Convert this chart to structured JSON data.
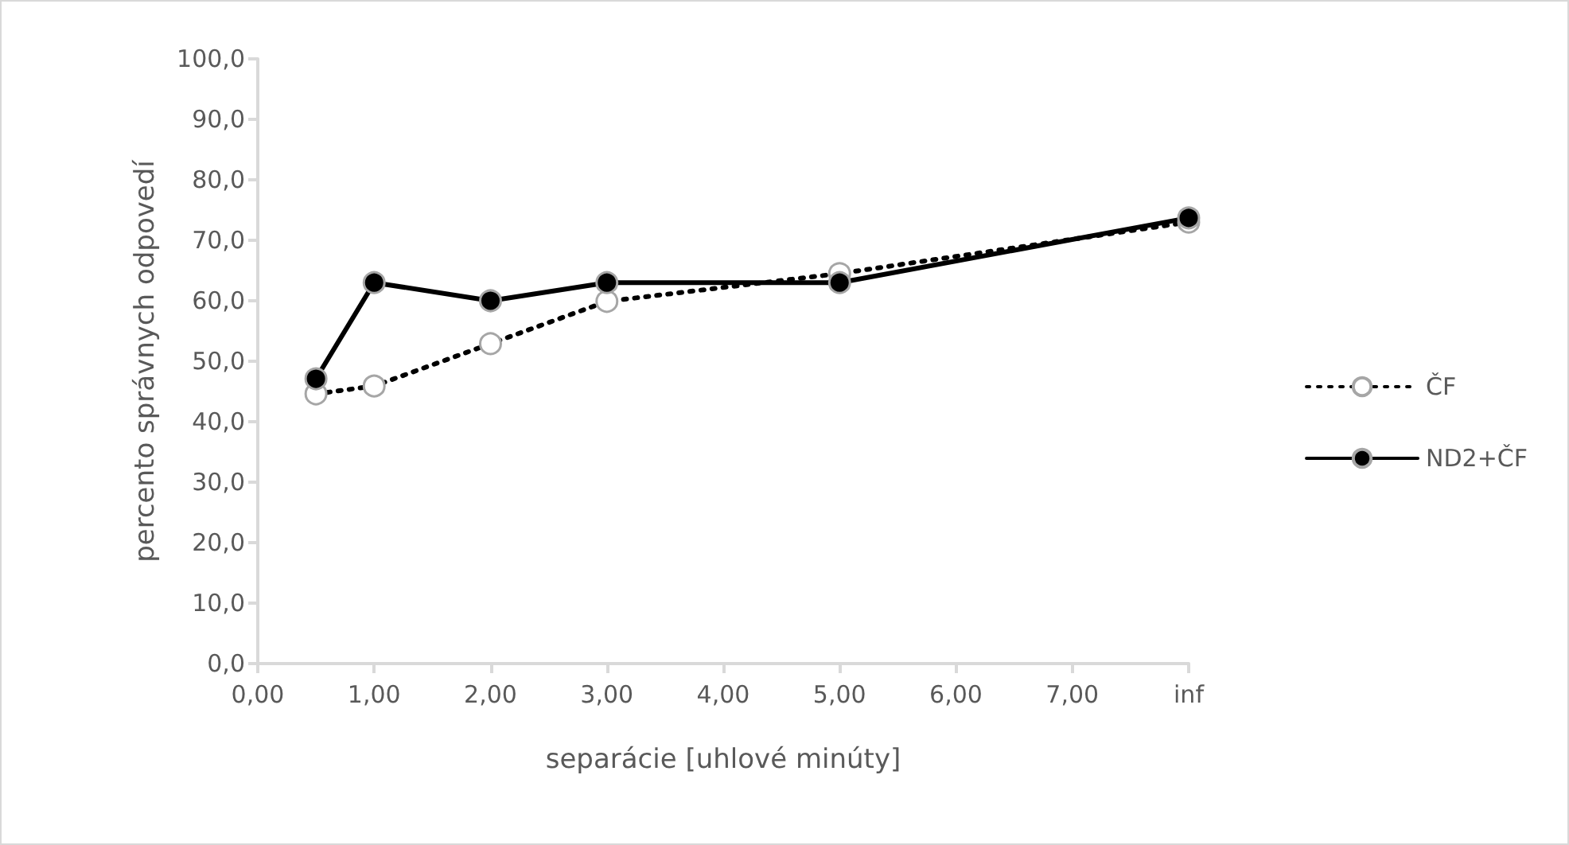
{
  "chart_data": {
    "type": "line",
    "xlabel": "separácie [uhlové minúty]",
    "ylabel": "percento správnych odpovedí",
    "x": [
      0.5,
      1,
      2,
      3,
      5,
      8
    ],
    "series": [
      {
        "name": "ČF",
        "color": "#000000",
        "values": [
          44.6,
          45.9,
          52.9,
          59.9,
          64.5,
          73.0
        ],
        "line_style": "dotted",
        "marker": "circle"
      },
      {
        "name": "ND2+ČF",
        "color": "#000000",
        "values": [
          47.1,
          63.0,
          60.0,
          63.0,
          63.0,
          73.7
        ],
        "line_style": "solid",
        "marker": "circle"
      }
    ],
    "xlim": [
      0,
      8
    ],
    "xticks": [
      {
        "value": 0,
        "label": "0,00"
      },
      {
        "value": 1,
        "label": "1,00"
      },
      {
        "value": 2,
        "label": "2,00"
      },
      {
        "value": 3,
        "label": "3,00"
      },
      {
        "value": 4,
        "label": "4,00"
      },
      {
        "value": 5,
        "label": "5,00"
      },
      {
        "value": 6,
        "label": "6,00"
      },
      {
        "value": 7,
        "label": "7,00"
      },
      {
        "value": 8,
        "label": "inf"
      }
    ],
    "ylim": [
      0,
      100
    ],
    "yticks": [
      {
        "value": 0,
        "label": "0,0"
      },
      {
        "value": 10,
        "label": "10,0"
      },
      {
        "value": 20,
        "label": "20,0"
      },
      {
        "value": 30,
        "label": "30,0"
      },
      {
        "value": 40,
        "label": "40,0"
      },
      {
        "value": 50,
        "label": "50,0"
      },
      {
        "value": 60,
        "label": "60,0"
      },
      {
        "value": 70,
        "label": "70,0"
      },
      {
        "value": 80,
        "label": "80,0"
      },
      {
        "value": 90,
        "label": "90,0"
      },
      {
        "value": 100,
        "label": "100,0"
      }
    ],
    "grid": false,
    "legend": "right"
  }
}
